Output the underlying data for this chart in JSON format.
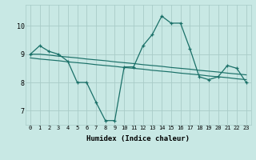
{
  "title": "",
  "xlabel": "Humidex (Indice chaleur)",
  "ylabel": "",
  "background_color": "#c8e8e4",
  "grid_color": "#a8ccc8",
  "line_color": "#1a7068",
  "xlim": [
    -0.5,
    23.5
  ],
  "ylim": [
    6.5,
    10.75
  ],
  "yticks": [
    7,
    8,
    9,
    10
  ],
  "xticks": [
    0,
    1,
    2,
    3,
    4,
    5,
    6,
    7,
    8,
    9,
    10,
    11,
    12,
    13,
    14,
    15,
    16,
    17,
    18,
    19,
    20,
    21,
    22,
    23
  ],
  "line1": [
    9.0,
    9.3,
    9.1,
    9.0,
    8.75,
    8.0,
    8.0,
    7.3,
    6.65,
    6.65,
    8.55,
    8.55,
    9.3,
    9.7,
    10.35,
    10.1,
    10.1,
    9.2,
    8.2,
    8.1,
    8.2,
    8.6,
    8.5,
    8.0
  ],
  "line2": [
    9.0,
    9.0,
    8.97,
    8.93,
    8.9,
    8.87,
    8.83,
    8.8,
    8.77,
    8.73,
    8.7,
    8.67,
    8.63,
    8.6,
    8.57,
    8.53,
    8.5,
    8.47,
    8.43,
    8.4,
    8.37,
    8.33,
    8.3,
    8.27
  ],
  "line3": [
    8.87,
    8.83,
    8.8,
    8.77,
    8.73,
    8.7,
    8.67,
    8.63,
    8.6,
    8.57,
    8.53,
    8.5,
    8.47,
    8.43,
    8.4,
    8.37,
    8.33,
    8.3,
    8.27,
    8.23,
    8.2,
    8.17,
    8.13,
    8.1
  ]
}
